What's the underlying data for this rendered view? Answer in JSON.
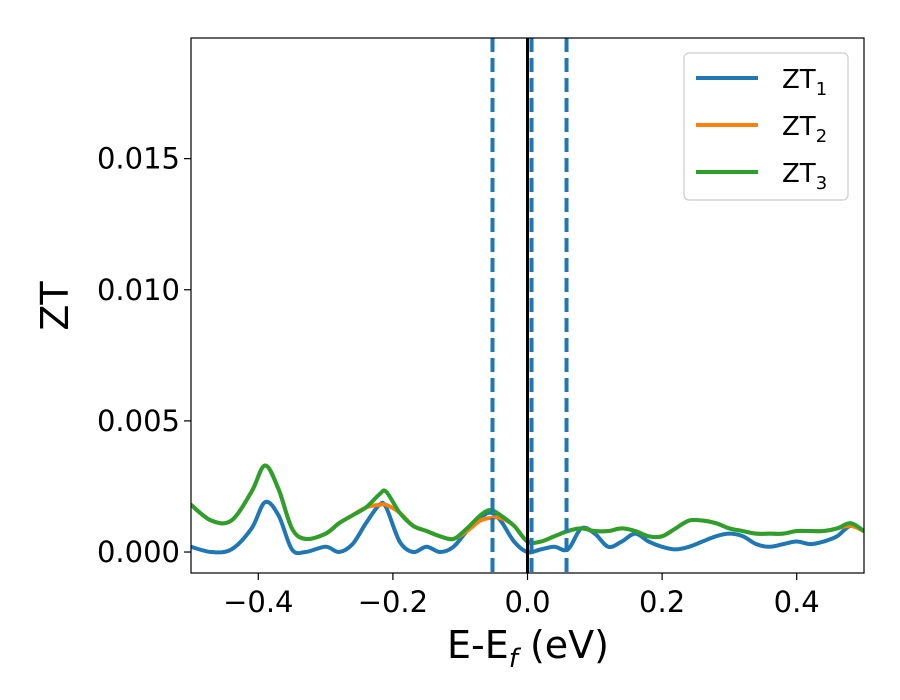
{
  "chart_data": {
    "type": "line",
    "xlabel": {
      "main": "E-E",
      "sub": "f",
      "tail": " (eV)"
    },
    "ylabel": "ZT",
    "xlim": [
      -0.5,
      0.5
    ],
    "ylim": [
      -0.0008,
      0.0196
    ],
    "xticks": [
      -0.4,
      -0.2,
      0.0,
      0.2,
      0.4
    ],
    "xtick_labels": [
      "−0.4",
      "−0.2",
      "0.0",
      "0.2",
      "0.4"
    ],
    "yticks": [
      0.0,
      0.005,
      0.01,
      0.015
    ],
    "ytick_labels": [
      "0.000",
      "0.005",
      "0.010",
      "0.015"
    ],
    "grid": false,
    "legend_position": "top-right",
    "vlines": [
      {
        "x": 0.0,
        "style": "solid",
        "color": "#000000"
      },
      {
        "x": -0.052,
        "style": "dashed",
        "color": "#1f77b4"
      },
      {
        "x": 0.006,
        "style": "dashed",
        "color": "#1f77b4"
      },
      {
        "x": 0.058,
        "style": "dashed",
        "color": "#1f77b4"
      }
    ],
    "series": [
      {
        "name": "ZT",
        "sub": "1",
        "color": "#1f77b4",
        "x": [
          -0.5,
          -0.47,
          -0.44,
          -0.41,
          -0.39,
          -0.37,
          -0.35,
          -0.33,
          -0.3,
          -0.28,
          -0.26,
          -0.24,
          -0.22,
          -0.21,
          -0.19,
          -0.17,
          -0.15,
          -0.13,
          -0.11,
          -0.09,
          -0.07,
          -0.055,
          -0.04,
          -0.02,
          0.0,
          0.02,
          0.04,
          0.06,
          0.08,
          0.1,
          0.12,
          0.14,
          0.16,
          0.18,
          0.2,
          0.22,
          0.24,
          0.26,
          0.28,
          0.3,
          0.32,
          0.34,
          0.36,
          0.38,
          0.4,
          0.42,
          0.44,
          0.46,
          0.48,
          0.5
        ],
        "y": [
          0.0002,
          0.0,
          0.0001,
          0.0009,
          0.0019,
          0.0014,
          0.0001,
          0.0,
          0.0002,
          0.0,
          0.0003,
          0.0011,
          0.0018,
          0.0017,
          0.0004,
          0.0,
          0.0002,
          0.0,
          0.0002,
          0.0008,
          0.0013,
          0.0015,
          0.0012,
          0.0004,
          0.0,
          0.0001,
          0.0002,
          0.0001,
          0.0009,
          0.0007,
          0.0002,
          0.0004,
          0.0007,
          0.0004,
          0.0002,
          0.0001,
          0.0002,
          0.0004,
          0.0006,
          0.0007,
          0.0006,
          0.0003,
          0.0002,
          0.0003,
          0.0004,
          0.0003,
          0.0004,
          0.0006,
          0.001,
          0.0008
        ]
      },
      {
        "name": "ZT",
        "sub": "2",
        "color": "#ff7f0e",
        "x": [
          -0.5,
          -0.47,
          -0.44,
          -0.41,
          -0.39,
          -0.37,
          -0.35,
          -0.33,
          -0.3,
          -0.28,
          -0.26,
          -0.24,
          -0.22,
          -0.21,
          -0.19,
          -0.17,
          -0.15,
          -0.13,
          -0.11,
          -0.09,
          -0.07,
          -0.055,
          -0.04,
          -0.02,
          0.0,
          0.02,
          0.04,
          0.06,
          0.08,
          0.1,
          0.12,
          0.14,
          0.16,
          0.18,
          0.2,
          0.22,
          0.24,
          0.26,
          0.28,
          0.3,
          0.32,
          0.34,
          0.36,
          0.38,
          0.4,
          0.42,
          0.44,
          0.46,
          0.48,
          0.5
        ],
        "y": [
          0.0018,
          0.0012,
          0.0012,
          0.0023,
          0.0033,
          0.0024,
          0.0009,
          0.0005,
          0.0007,
          0.0011,
          0.0014,
          0.0017,
          0.0018,
          0.0018,
          0.0015,
          0.001,
          0.0008,
          0.0006,
          0.0005,
          0.0008,
          0.0012,
          0.0013,
          0.0013,
          0.001,
          0.0004,
          0.0004,
          0.0006,
          0.0008,
          0.0009,
          0.0008,
          0.0008,
          0.0009,
          0.0008,
          0.0006,
          0.0006,
          0.0009,
          0.0012,
          0.0012,
          0.0011,
          0.0009,
          0.0008,
          0.0007,
          0.0007,
          0.0007,
          0.0008,
          0.0008,
          0.0008,
          0.0009,
          0.001,
          0.0008
        ]
      },
      {
        "name": "ZT",
        "sub": "3",
        "color": "#2ca02c",
        "x": [
          -0.5,
          -0.47,
          -0.44,
          -0.41,
          -0.39,
          -0.37,
          -0.35,
          -0.33,
          -0.3,
          -0.28,
          -0.26,
          -0.24,
          -0.22,
          -0.21,
          -0.19,
          -0.17,
          -0.15,
          -0.13,
          -0.11,
          -0.09,
          -0.07,
          -0.055,
          -0.04,
          -0.02,
          0.0,
          0.02,
          0.04,
          0.06,
          0.08,
          0.1,
          0.12,
          0.14,
          0.16,
          0.18,
          0.2,
          0.22,
          0.24,
          0.26,
          0.28,
          0.3,
          0.32,
          0.34,
          0.36,
          0.38,
          0.4,
          0.42,
          0.44,
          0.46,
          0.48,
          0.5
        ],
        "y": [
          0.0018,
          0.0012,
          0.0012,
          0.0023,
          0.0033,
          0.0024,
          0.0009,
          0.0005,
          0.0007,
          0.0011,
          0.0014,
          0.0017,
          0.0022,
          0.0023,
          0.0015,
          0.001,
          0.0008,
          0.0006,
          0.0005,
          0.0009,
          0.0014,
          0.0016,
          0.0014,
          0.001,
          0.0004,
          0.0004,
          0.0006,
          0.0008,
          0.0009,
          0.0008,
          0.0008,
          0.0009,
          0.0008,
          0.0006,
          0.0006,
          0.0009,
          0.0012,
          0.0012,
          0.0011,
          0.0009,
          0.0008,
          0.0007,
          0.0007,
          0.0007,
          0.0008,
          0.0008,
          0.0008,
          0.0009,
          0.0011,
          0.0008
        ]
      }
    ]
  }
}
